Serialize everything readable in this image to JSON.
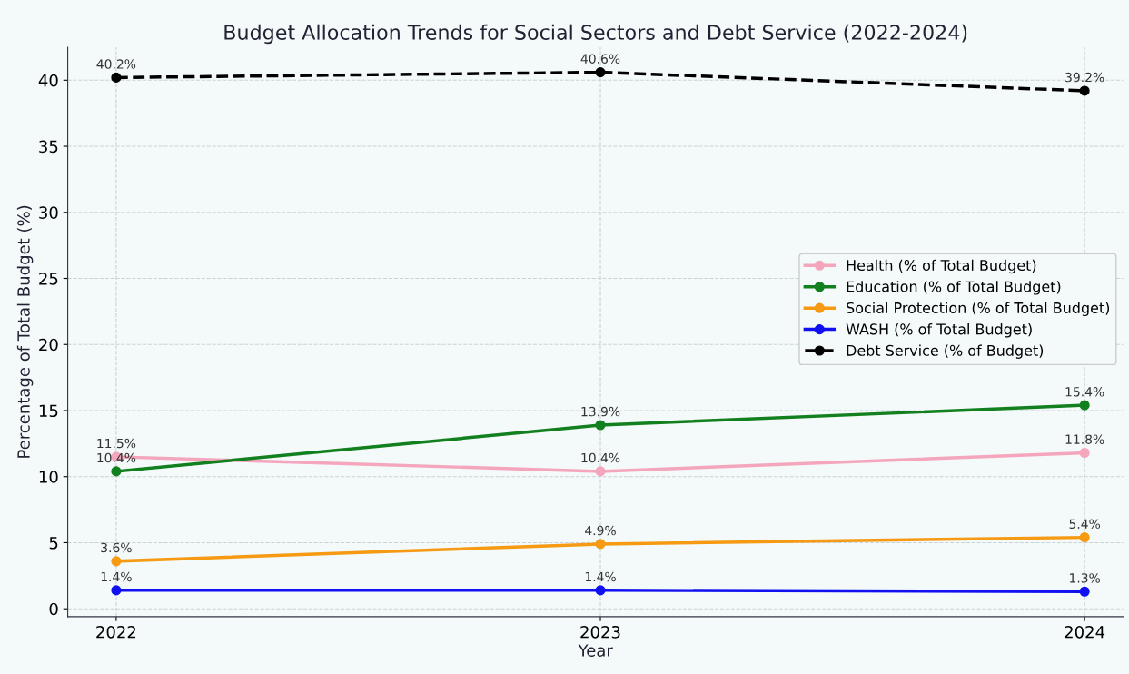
{
  "chart_data": {
    "type": "line",
    "title": "Budget Allocation Trends for Social Sectors and Debt Service (2022-2024)",
    "xlabel": "Year",
    "ylabel": "Percentage of Total Budget (%)",
    "x": [
      2022,
      2023,
      2024
    ],
    "xlim": [
      2021.9,
      2024.08
    ],
    "xticks": [
      2022,
      2023,
      2024
    ],
    "series": [
      {
        "name": "Health (% of Total Budget)",
        "color": "#f4a6bd",
        "values": [
          11.5,
          10.4,
          11.8
        ],
        "value_labels": [
          "11.5%",
          "10.4%",
          "11.8%"
        ]
      },
      {
        "name": "Education (% of Total Budget)",
        "color": "#12801e",
        "values": [
          10.4,
          13.9,
          15.4
        ],
        "value_labels": [
          "10.4%",
          "13.9%",
          "15.4%"
        ]
      },
      {
        "name": "Social Protection (% of Total Budget)",
        "color": "#f59a12",
        "values": [
          3.6,
          4.9,
          5.4
        ],
        "value_labels": [
          "3.6%",
          "4.9%",
          "5.4%"
        ]
      },
      {
        "name": "WASH (% of Total Budget)",
        "color": "#1010f0",
        "values": [
          1.4,
          1.4,
          1.3
        ],
        "value_labels": [
          "1.4%",
          "1.4%",
          "1.3%"
        ]
      },
      {
        "name": "Debt Service (% of Budget)",
        "color": "#000000",
        "values": [
          40.2,
          40.6,
          39.2
        ],
        "value_labels": [
          "40.2%",
          "40.6%",
          "39.2%"
        ],
        "line_style": "dashed"
      }
    ],
    "ylim": [
      -0.6,
      42.5
    ],
    "yticks": [
      0,
      5,
      10,
      15,
      20,
      25,
      30,
      35,
      40
    ],
    "grid": true,
    "legend": "right",
    "marker": "circle",
    "line_style": "solid"
  }
}
